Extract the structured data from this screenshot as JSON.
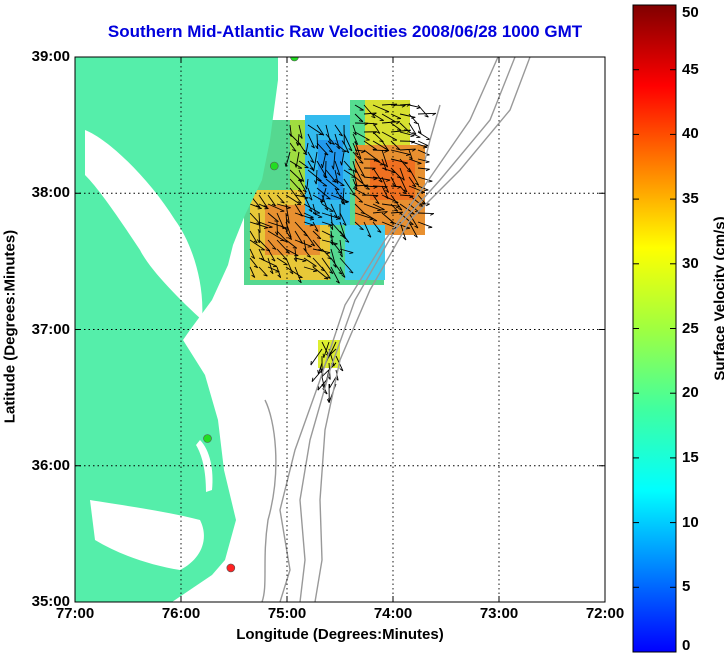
{
  "title": "Southern Mid-Atlantic Raw Velocities 2008/06/28 1000 GMT",
  "x_axis": {
    "label": "Longitude (Degrees:Minutes)",
    "ticks": [
      "77:00",
      "76:00",
      "75:00",
      "74:00",
      "73:00",
      "72:00"
    ]
  },
  "y_axis": {
    "label": "Latitude (Degrees:Minutes)",
    "ticks": [
      "39:00",
      "38:00",
      "37:00",
      "36:00",
      "35:00"
    ]
  },
  "colorbar": {
    "label": "Surface Velocity (cm/s)",
    "ticks": [
      "0",
      "5",
      "10",
      "15",
      "20",
      "25",
      "30",
      "35",
      "40",
      "45",
      "50"
    ],
    "min": 0,
    "max": 50
  },
  "colors": {
    "land": "#55eeaa",
    "title": "#0000dd",
    "bathymetry": "#999999",
    "station_active": "#22dd22",
    "station_inactive": "#ff2222"
  },
  "extent": {
    "lon": [
      -77,
      -72
    ],
    "lat": [
      35,
      39
    ]
  },
  "grid": true,
  "stations": [
    {
      "lon": -74.93,
      "lat": 39.0,
      "status": "active"
    },
    {
      "lon": -75.12,
      "lat": 38.2,
      "status": "active"
    },
    {
      "lon": -75.75,
      "lat": 36.2,
      "status": "active"
    },
    {
      "lon": -75.53,
      "lat": 35.25,
      "status": "inactive"
    }
  ]
}
